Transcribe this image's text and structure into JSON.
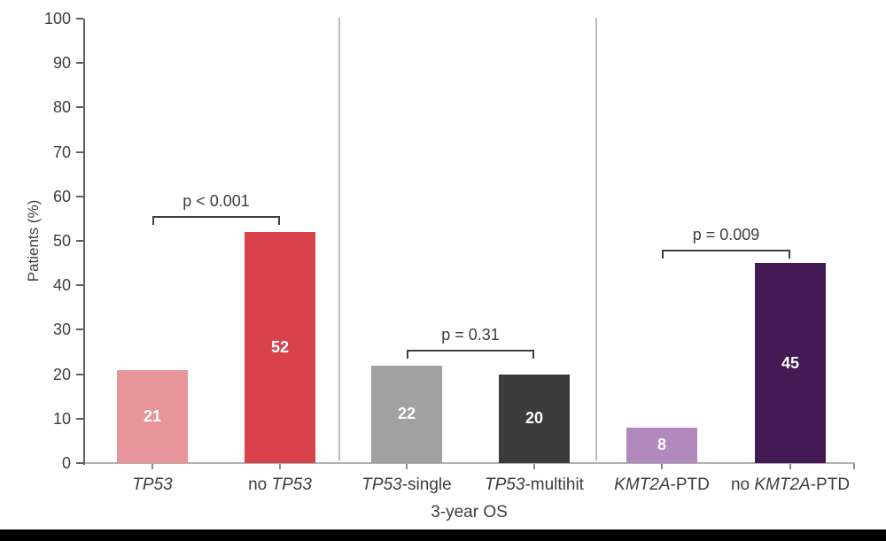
{
  "chart_data": {
    "type": "bar",
    "title": "",
    "ylabel": "Patients (%)",
    "xlabel": "3-year OS",
    "ylim": [
      0,
      100
    ],
    "yticks": [
      0,
      10,
      20,
      30,
      40,
      50,
      60,
      70,
      80,
      90,
      100
    ],
    "grid": false,
    "legend": "none",
    "categories": [
      "TP53",
      "no TP53",
      "TP53-single",
      "TP53-multihit",
      "KMT2A-PTD",
      "no KMT2A-PTD"
    ],
    "values": [
      21,
      52,
      22,
      20,
      8,
      45
    ],
    "bars": [
      {
        "label_segments": [
          {
            "text": "TP53",
            "italic": true
          }
        ],
        "value": 21,
        "color": "#e8949b"
      },
      {
        "label_segments": [
          {
            "text": "no ",
            "italic": false
          },
          {
            "text": "TP53",
            "italic": true
          }
        ],
        "value": 52,
        "color": "#d7424b"
      },
      {
        "label_segments": [
          {
            "text": "TP53",
            "italic": true
          },
          {
            "text": "-single",
            "italic": false
          }
        ],
        "value": 22,
        "color": "#a1a1a1"
      },
      {
        "label_segments": [
          {
            "text": "TP53",
            "italic": true
          },
          {
            "text": "-multihit",
            "italic": false
          }
        ],
        "value": 20,
        "color": "#3b3b3b"
      },
      {
        "label_segments": [
          {
            "text": "KMT2A",
            "italic": true
          },
          {
            "text": "-PTD",
            "italic": false
          }
        ],
        "value": 8,
        "color": "#b189bc"
      },
      {
        "label_segments": [
          {
            "text": "no ",
            "italic": false
          },
          {
            "text": "KMT2A",
            "italic": true
          },
          {
            "text": "-PTD",
            "italic": false
          }
        ],
        "value": 45,
        "color": "#431a53"
      }
    ],
    "comparisons": [
      {
        "label": "p < 0.001",
        "from_bar": 0,
        "to_bar": 1,
        "bracket_level_pct": 55.5
      },
      {
        "label": "p = 0.31",
        "from_bar": 2,
        "to_bar": 3,
        "bracket_level_pct": 25.5
      },
      {
        "label": "p = 0.009",
        "from_bar": 4,
        "to_bar": 5,
        "bracket_level_pct": 48.0
      }
    ],
    "colors": {
      "value_label": "#ffffff",
      "text": "#3d3d3d",
      "y_axis": "#5f5f5f",
      "x_axis": "#b0b0b0",
      "divider": "#bcbcbc",
      "bracket": "#3f3f3f",
      "bottom_band": "#010101"
    }
  }
}
